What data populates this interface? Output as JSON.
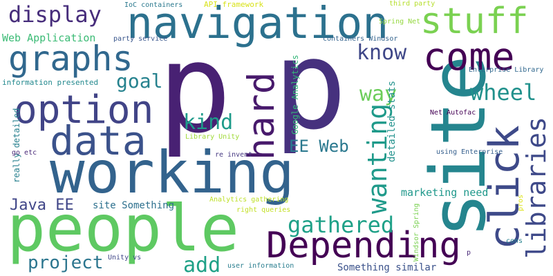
{
  "word_cloud": {
    "words": [
      {
        "text": "p",
        "color": "#482173"
      },
      {
        "text": "p",
        "color": "#46317e"
      },
      {
        "text": "working",
        "color": "#33638d"
      },
      {
        "text": "people",
        "color": "#5ec962"
      },
      {
        "text": "site",
        "color": "#25858e"
      },
      {
        "text": "navigation",
        "color": "#2c718e"
      },
      {
        "text": "Depending",
        "color": "#440154"
      },
      {
        "text": "data",
        "color": "#3b528b"
      },
      {
        "text": "option",
        "color": "#414487"
      },
      {
        "text": "graphs",
        "color": "#31688e"
      },
      {
        "text": "click",
        "color": "#3e4a89"
      },
      {
        "text": "stuff",
        "color": "#7ad151"
      },
      {
        "text": "come",
        "color": "#440154"
      },
      {
        "text": "hard",
        "color": "#481a6c"
      },
      {
        "text": "display",
        "color": "#472d7b"
      },
      {
        "text": "libraries",
        "color": "#3e4989"
      },
      {
        "text": "wanting",
        "color": "#1f9a8a"
      },
      {
        "text": "gathered",
        "color": "#1fa188"
      },
      {
        "text": "wheel",
        "color": "#21918c"
      },
      {
        "text": "way",
        "color": "#6ccd5a"
      },
      {
        "text": "kind",
        "color": "#1e9b8a"
      },
      {
        "text": "know",
        "color": "#3f4788"
      },
      {
        "text": "goal",
        "color": "#26828e"
      },
      {
        "text": "add",
        "color": "#1fa187"
      },
      {
        "text": "project",
        "color": "#2b758e"
      },
      {
        "text": "EE Web",
        "color": "#2a788e"
      },
      {
        "text": "Java EE",
        "color": "#404688"
      },
      {
        "text": "Web Application",
        "color": "#3bbb75"
      },
      {
        "text": "marketing need",
        "color": "#1f988b"
      },
      {
        "text": "site Something",
        "color": "#2d708e"
      },
      {
        "text": "Something similar",
        "color": "#3b528b"
      },
      {
        "text": "detailed stats",
        "color": "#21918c"
      },
      {
        "text": "Google Analytics",
        "color": "#35b779"
      },
      {
        "text": "really detailed",
        "color": "#27808e"
      },
      {
        "text": "information presented",
        "color": "#23898e"
      },
      {
        "text": "API framework",
        "color": "#d8e219"
      },
      {
        "text": "IoC containers",
        "color": "#2a788e"
      },
      {
        "text": "third party",
        "color": "#b5de2b"
      },
      {
        "text": "Spring Net",
        "color": "#95d840"
      },
      {
        "text": "containers Windsor",
        "color": "#33638d"
      },
      {
        "text": "party service",
        "color": "#39568c"
      },
      {
        "text": "Enterprise Library",
        "color": "#31688e"
      },
      {
        "text": "Net Autofac",
        "color": "#440154"
      },
      {
        "text": "using Enterprise",
        "color": "#355f8d"
      },
      {
        "text": "re invent",
        "color": "#453781"
      },
      {
        "text": "Library Unity",
        "color": "#a0da39"
      },
      {
        "text": "Analytics gathering",
        "color": "#bddf26"
      },
      {
        "text": "right queries",
        "color": "#c2df23"
      },
      {
        "text": "user information",
        "color": "#287d8e"
      },
      {
        "text": "Unity vs",
        "color": "#3f4788"
      },
      {
        "text": "Windsor Spring",
        "color": "#7ad151"
      },
      {
        "text": "go etc",
        "color": "#482878"
      },
      {
        "text": "cons",
        "color": "#26828e"
      },
      {
        "text": "pros",
        "color": "#dde318"
      },
      {
        "text": "p",
        "color": "#482878"
      }
    ]
  }
}
